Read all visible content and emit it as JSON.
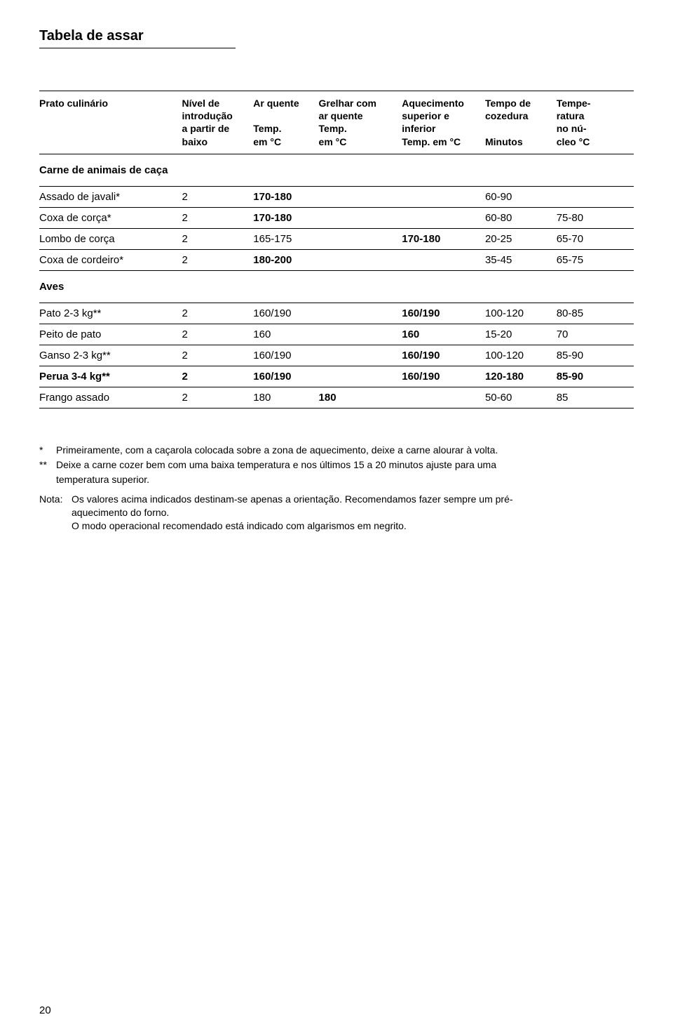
{
  "title": "Tabela de assar",
  "columns": {
    "dish": "Prato culinário",
    "level": "Nível de\nintrodução\na partir de\nbaixo",
    "c1": "Ar quente\n\nTemp.\nem °C",
    "c2": "Grelhar com\nar quente\nTemp.\nem °C",
    "c3": "Aquecimento\nsuperior e\ninferior\nTemp. em °C",
    "c4": "Tempo de\ncozedura\n\nMinutos",
    "c5": "Tempe-\nratura\nno nú-\ncleo °C"
  },
  "sections": [
    {
      "label": "Carne de animais de caça",
      "rows": [
        {
          "dish": "Assado de javali*",
          "level": "2",
          "c1": "170-180",
          "c2": "",
          "c3": "",
          "c4": "60-90",
          "c5": "",
          "bold": [
            "c1"
          ]
        },
        {
          "dish": "Coxa de corça*",
          "level": "2",
          "c1": "170-180",
          "c2": "",
          "c3": "",
          "c4": "60-80",
          "c5": "75-80",
          "bold": [
            "c1"
          ]
        },
        {
          "dish": "Lombo de corça",
          "level": "2",
          "c1": "165-175",
          "c2": "",
          "c3": "170-180",
          "c4": "20-25",
          "c5": "65-70",
          "bold": [
            "c3"
          ]
        },
        {
          "dish": "Coxa de cordeiro*",
          "level": "2",
          "c1": "180-200",
          "c2": "",
          "c3": "",
          "c4": "35-45",
          "c5": "65-75",
          "bold": [
            "c1"
          ]
        }
      ]
    },
    {
      "label": "Aves",
      "rows": [
        {
          "dish": "Pato 2-3 kg**",
          "level": "2",
          "c1": "160/190",
          "c2": "",
          "c3": "160/190",
          "c4": "100-120",
          "c5": "80-85",
          "bold": [
            "c3"
          ]
        },
        {
          "dish": "Peito de pato",
          "level": "2",
          "c1": "160",
          "c2": "",
          "c3": "160",
          "c4": "15-20",
          "c5": "70",
          "bold": [
            "c3"
          ]
        },
        {
          "dish": "Ganso 2-3 kg**",
          "level": "2",
          "c1": "160/190",
          "c2": "",
          "c3": "160/190",
          "c4": "100-120",
          "c5": "85-90",
          "bold": [
            "c3"
          ]
        },
        {
          "dish": "Perua 3-4 kg**",
          "level": "2",
          "c1": "160/190",
          "c2": "",
          "c3": "160/190",
          "c4": "120-180",
          "c5": "85-90",
          "bold": [
            "dish",
            "level",
            "c1",
            "c3",
            "c4",
            "c5"
          ]
        },
        {
          "dish": "Frango assado",
          "level": "2",
          "c1": "180",
          "c2": "180",
          "c3": "",
          "c4": "50-60",
          "c5": "85",
          "bold": [
            "c2"
          ]
        }
      ]
    }
  ],
  "notes": {
    "star1_marker": "*",
    "star1": "Primeiramente, com a caçarola colocada sobre a zona de aquecimento, deixe a carne alourar à volta.",
    "star2_marker": "**",
    "star2a": "Deixe a carne cozer bem com uma baixa temperatura e nos últimos 15 a 20 minutos ajuste para uma",
    "star2b": "temperatura superior.",
    "nota_label": "Nota:",
    "nota1": "Os valores acima indicados destinam-se apenas a orientação. Recomendamos fazer sempre um pré-",
    "nota2": "aquecimento do forno.",
    "nota3": "O modo operacional recomendado está indicado com algarismos em negrito."
  },
  "page_number": "20",
  "style": {
    "font_family": "Arial, Helvetica, sans-serif",
    "text_color": "#000000",
    "background": "#ffffff",
    "border_color": "#000000"
  }
}
